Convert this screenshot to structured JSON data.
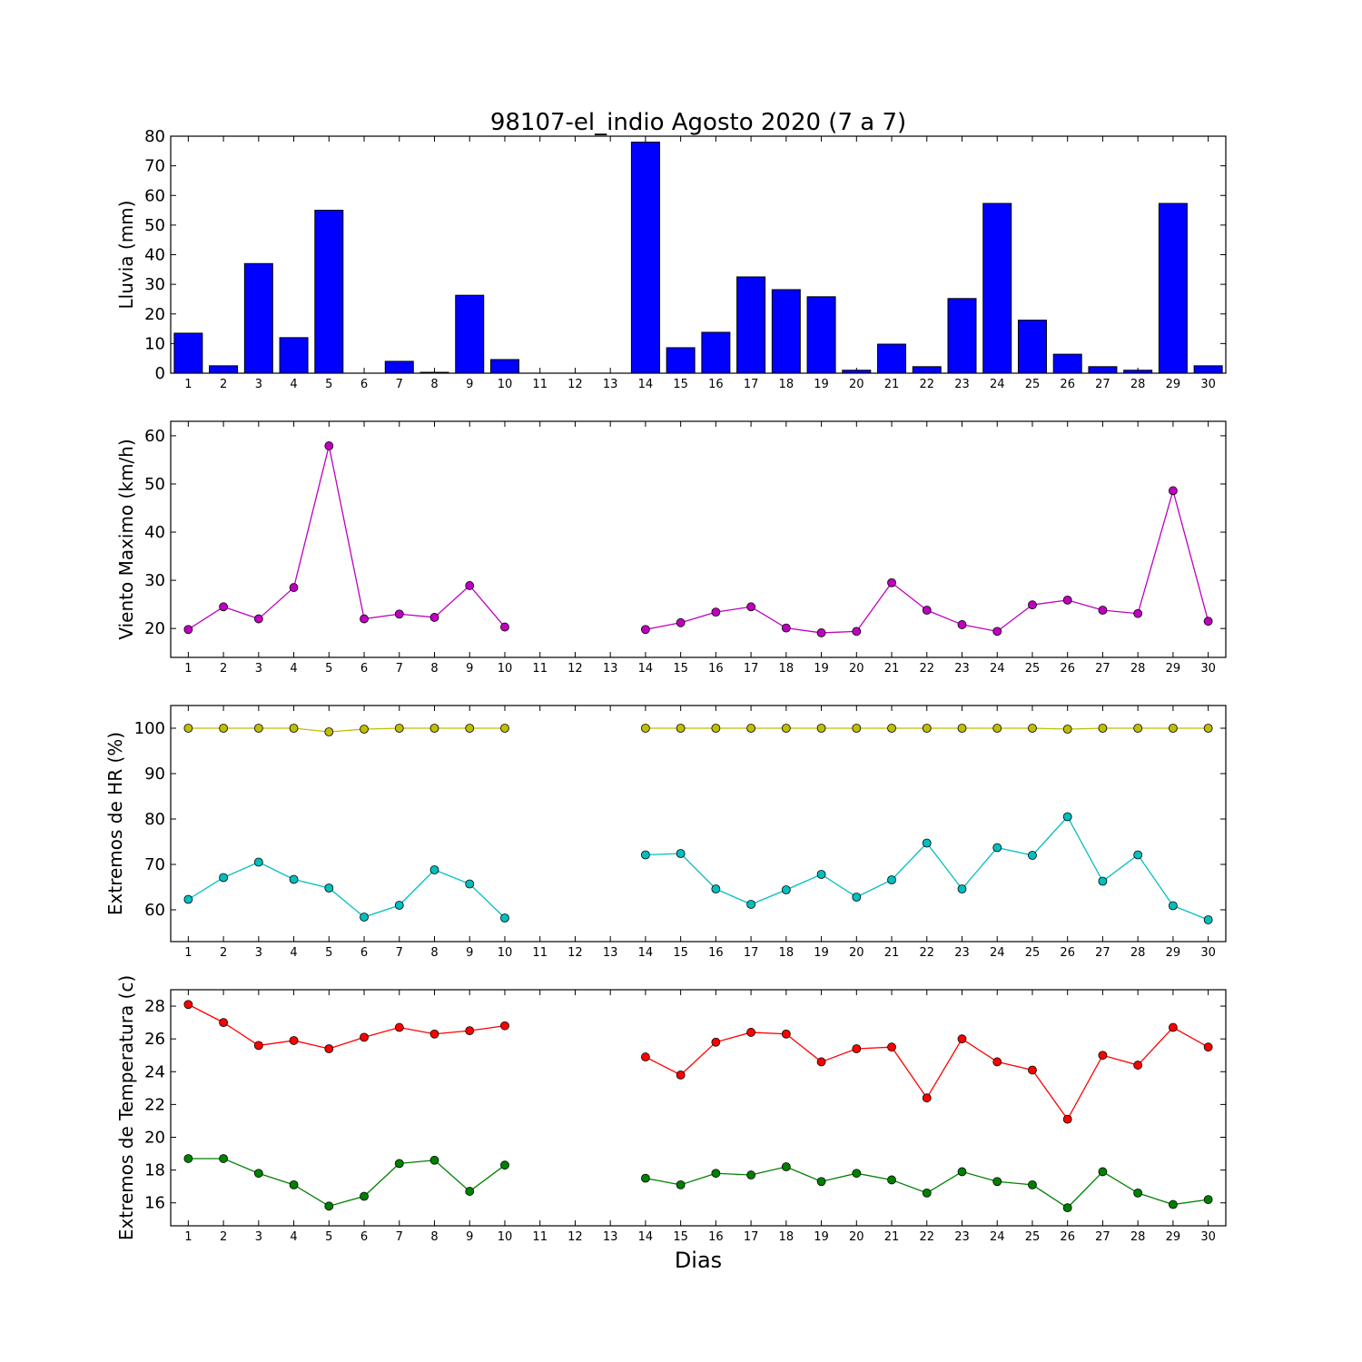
{
  "figure": {
    "title": "98107-el_indio Agosto 2020  (7 a 7)",
    "xlabel": "Dias",
    "days": [
      1,
      2,
      3,
      4,
      5,
      6,
      7,
      8,
      9,
      10,
      11,
      12,
      13,
      14,
      15,
      16,
      17,
      18,
      19,
      20,
      21,
      22,
      23,
      24,
      25,
      26,
      27,
      28,
      29,
      30
    ]
  },
  "chart_data": [
    {
      "type": "bar",
      "ylabel": "Lluvia (mm)",
      "ylim": [
        0,
        80
      ],
      "yticks": [
        0,
        10,
        20,
        30,
        40,
        50,
        60,
        70,
        80
      ],
      "x": [
        1,
        2,
        3,
        4,
        5,
        6,
        7,
        8,
        9,
        10,
        11,
        12,
        13,
        14,
        15,
        16,
        17,
        18,
        19,
        20,
        21,
        22,
        23,
        24,
        25,
        26,
        27,
        28,
        29,
        30
      ],
      "series": [
        {
          "color": "#0000ff",
          "values": [
            13.5,
            2.5,
            37,
            12,
            55,
            0,
            4,
            0.3,
            26.3,
            4.6,
            0,
            0,
            0,
            78,
            8.6,
            13.8,
            32.5,
            28.2,
            25.8,
            1,
            9.8,
            2.2,
            25.2,
            57.3,
            17.9,
            6.4,
            2.2,
            1,
            57.3,
            2.5
          ]
        }
      ]
    },
    {
      "type": "line",
      "ylabel": "Viento Maximo (km/h)",
      "ylim": [
        14,
        63
      ],
      "yticks": [
        20,
        30,
        40,
        50,
        60
      ],
      "x": [
        1,
        2,
        3,
        4,
        5,
        6,
        7,
        8,
        9,
        10,
        11,
        12,
        13,
        14,
        15,
        16,
        17,
        18,
        19,
        20,
        21,
        22,
        23,
        24,
        25,
        26,
        27,
        28,
        29,
        30
      ],
      "series": [
        {
          "color": "#bf00bf",
          "values": [
            19.8,
            24.5,
            22,
            28.5,
            57.9,
            22,
            23,
            22.3,
            28.9,
            20.3,
            null,
            null,
            null,
            19.8,
            21.2,
            23.4,
            24.5,
            20.1,
            19.1,
            19.4,
            29.5,
            23.8,
            20.8,
            19.4,
            24.9,
            25.9,
            23.8,
            23.1,
            48.6,
            21.5
          ]
        }
      ]
    },
    {
      "type": "line",
      "ylabel": "Extremos de HR (%)",
      "ylim": [
        53,
        105
      ],
      "yticks": [
        60,
        70,
        80,
        90,
        100
      ],
      "x": [
        1,
        2,
        3,
        4,
        5,
        6,
        7,
        8,
        9,
        10,
        11,
        12,
        13,
        14,
        15,
        16,
        17,
        18,
        19,
        20,
        21,
        22,
        23,
        24,
        25,
        26,
        27,
        28,
        29,
        30
      ],
      "series": [
        {
          "color": "#bfbf00",
          "values": [
            100,
            100,
            100,
            100,
            99.2,
            99.8,
            100,
            100,
            100,
            100,
            null,
            null,
            null,
            100,
            100,
            100,
            100,
            100,
            100,
            100,
            100,
            100,
            100,
            100,
            100,
            99.8,
            100,
            100,
            100,
            100
          ]
        },
        {
          "color": "#00bfbf",
          "values": [
            62.3,
            67.1,
            70.5,
            66.7,
            64.8,
            58.4,
            61,
            68.8,
            65.7,
            58.2,
            null,
            null,
            null,
            72.1,
            72.4,
            64.6,
            61.2,
            64.4,
            67.8,
            62.8,
            66.6,
            74.7,
            64.6,
            73.7,
            72,
            80.5,
            66.3,
            72.1,
            60.9,
            57.8
          ]
        }
      ]
    },
    {
      "type": "line",
      "ylabel": "Extremos de Temperatura (c)",
      "ylim": [
        14.6,
        29
      ],
      "yticks": [
        16,
        18,
        20,
        22,
        24,
        26,
        28
      ],
      "x": [
        1,
        2,
        3,
        4,
        5,
        6,
        7,
        8,
        9,
        10,
        11,
        12,
        13,
        14,
        15,
        16,
        17,
        18,
        19,
        20,
        21,
        22,
        23,
        24,
        25,
        26,
        27,
        28,
        29,
        30
      ],
      "series": [
        {
          "color": "#ff0000",
          "values": [
            28.1,
            27,
            25.6,
            25.9,
            25.4,
            26.1,
            26.7,
            26.3,
            26.5,
            26.8,
            null,
            null,
            null,
            24.9,
            23.8,
            25.8,
            26.4,
            26.3,
            24.6,
            25.4,
            25.5,
            22.4,
            26,
            24.6,
            24.1,
            21.1,
            25,
            24.4,
            26.7,
            25.5
          ]
        },
        {
          "color": "#008000",
          "values": [
            18.7,
            18.7,
            17.8,
            17.1,
            15.8,
            16.4,
            18.4,
            18.6,
            16.7,
            18.3,
            null,
            null,
            null,
            17.5,
            17.1,
            17.8,
            17.7,
            18.2,
            17.3,
            17.8,
            17.4,
            16.6,
            17.9,
            17.3,
            17.1,
            15.7,
            17.9,
            16.6,
            15.9,
            16.2
          ]
        }
      ]
    }
  ]
}
